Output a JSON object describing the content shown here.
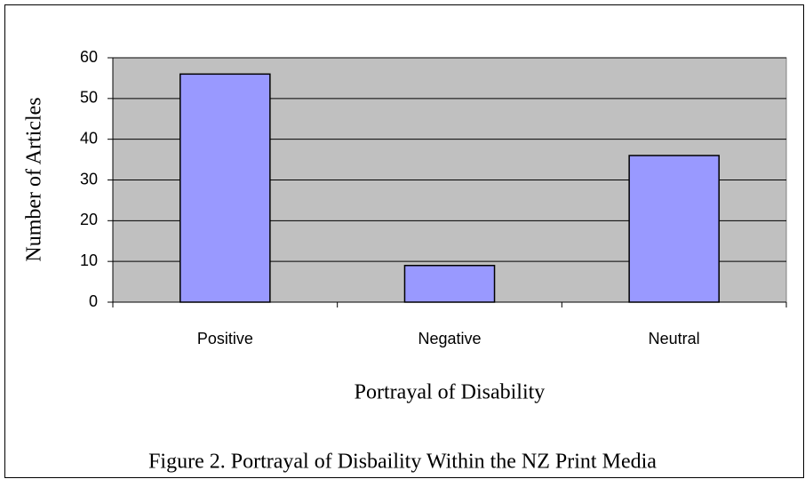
{
  "chart_data": {
    "type": "bar",
    "caption": "Figure 2. Portrayal of Disbaility Within the NZ Print Media",
    "x_label": "Portrayal of Disability",
    "y_label": "Number of Articles",
    "categories": [
      "Positive",
      "Negative",
      "Neutral"
    ],
    "values": [
      56,
      9,
      36
    ],
    "color": "#9999ff",
    "ylim": [
      0,
      60
    ],
    "yticks": [
      0,
      10,
      20,
      30,
      40,
      50,
      60
    ],
    "grid": true
  }
}
